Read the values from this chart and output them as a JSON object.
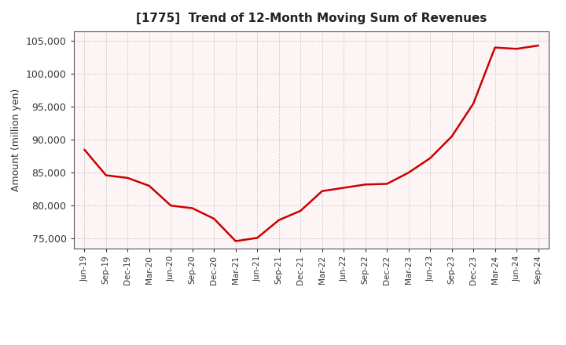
{
  "title": "[1775]  Trend of 12-Month Moving Sum of Revenues",
  "ylabel": "Amount (million yen)",
  "line_color": "#cc0000",
  "background_color": "#ffffff",
  "plot_bg_color": "#fdf5f5",
  "grid_color": "#999999",
  "spine_color": "#555555",
  "ylim": [
    73500,
    106500
  ],
  "yticks": [
    75000,
    80000,
    85000,
    90000,
    95000,
    100000,
    105000
  ],
  "x_labels": [
    "Jun-19",
    "Sep-19",
    "Dec-19",
    "Mar-20",
    "Jun-20",
    "Sep-20",
    "Dec-20",
    "Mar-21",
    "Jun-21",
    "Sep-21",
    "Dec-21",
    "Mar-22",
    "Jun-22",
    "Sep-22",
    "Dec-22",
    "Mar-23",
    "Jun-23",
    "Sep-23",
    "Dec-23",
    "Mar-24",
    "Jun-24",
    "Sep-24"
  ],
  "values": [
    88500,
    84600,
    84200,
    83000,
    80000,
    79600,
    78000,
    74600,
    75100,
    77800,
    79200,
    82200,
    82700,
    83200,
    83300,
    85000,
    87200,
    90500,
    95500,
    104000,
    103800,
    104300
  ]
}
